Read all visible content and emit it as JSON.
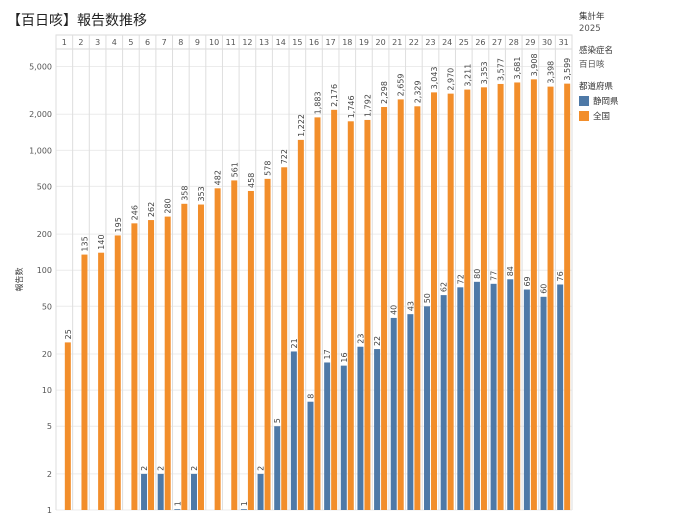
{
  "title": "【百日咳】報告数推移",
  "side": {
    "year_label": "集計年",
    "year_value": "2025",
    "disease_label": "感染症名",
    "disease_value": "百日咳",
    "legend_title": "都道府県"
  },
  "chart_data": {
    "type": "bar",
    "y_scale": "log",
    "ylabel": "報告数",
    "ylim": [
      1,
      7000
    ],
    "y_ticks": [
      1,
      2,
      5,
      10,
      20,
      50,
      100,
      200,
      500,
      1000,
      2000,
      5000
    ],
    "y_tick_labels": [
      "1",
      "2",
      "5",
      "10",
      "20",
      "50",
      "100",
      "200",
      "500",
      "1,000",
      "2,000",
      "5,000"
    ],
    "categories": [
      "1",
      "2",
      "3",
      "4",
      "5",
      "6",
      "7",
      "8",
      "9",
      "10",
      "11",
      "12",
      "13",
      "14",
      "15",
      "16",
      "17",
      "18",
      "19",
      "20",
      "21",
      "22",
      "23",
      "24",
      "25",
      "26",
      "27",
      "28",
      "29",
      "30",
      "31"
    ],
    "series": [
      {
        "name": "静岡県",
        "color": "#4e79a7",
        "values": [
          null,
          null,
          null,
          null,
          null,
          2,
          2,
          1,
          2,
          null,
          null,
          1,
          2,
          5,
          21,
          8,
          17,
          16,
          23,
          22,
          40,
          43,
          50,
          62,
          72,
          80,
          77,
          84,
          69,
          60,
          76
        ],
        "labels": [
          "",
          "",
          "",
          "",
          "",
          "2",
          "2",
          "1",
          "2",
          "",
          "",
          "1",
          "2",
          "5",
          "21",
          "8",
          "17",
          "16",
          "23",
          "22",
          "40",
          "43",
          "50",
          "62",
          "72",
          "80",
          "77",
          "84",
          "69",
          "60",
          "76"
        ]
      },
      {
        "name": "全国",
        "color": "#f28e2b",
        "values": [
          25,
          135,
          140,
          195,
          246,
          262,
          280,
          358,
          353,
          482,
          561,
          458,
          578,
          722,
          1222,
          1883,
          2176,
          1746,
          1792,
          2298,
          2659,
          2329,
          3043,
          2970,
          3211,
          3353,
          3577,
          3681,
          3908,
          3398,
          3599
        ],
        "labels": [
          "25",
          "135",
          "140",
          "195",
          "246",
          "262",
          "280",
          "358",
          "353",
          "482",
          "561",
          "458",
          "578",
          "722",
          "1,222",
          "1,883",
          "2,176",
          "1,746",
          "1,792",
          "2,298",
          "2,659",
          "2,329",
          "3,043",
          "2,970",
          "3,211",
          "3,353",
          "3,577",
          "3,681",
          "3,908",
          "3,398",
          "3,599"
        ]
      }
    ],
    "grid": true,
    "legend_position": "right"
  }
}
